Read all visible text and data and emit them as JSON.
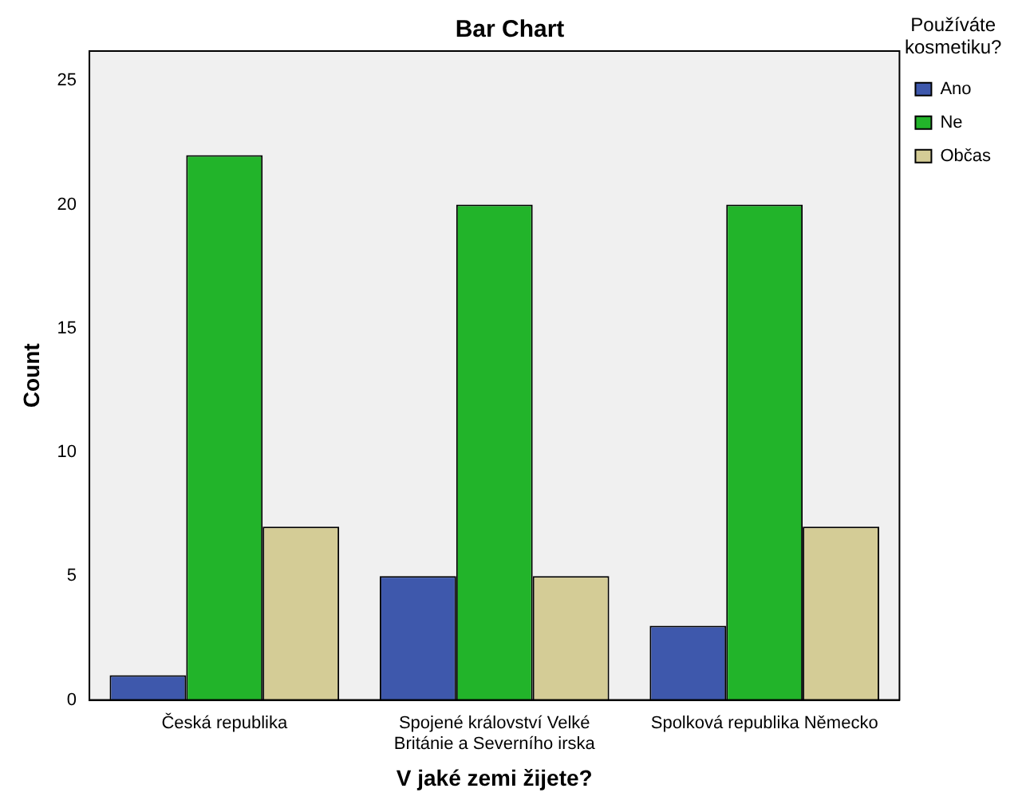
{
  "chart_data": {
    "type": "bar",
    "title": "Bar Chart",
    "xlabel": "V jaké zemi žijete?",
    "ylabel": "Count",
    "legend_title": "Používáte kosmetiku?",
    "categories": [
      "Česká republika",
      "Spojené království Velké Británie a Severního irska",
      "Spolková republika Německo"
    ],
    "series": [
      {
        "name": "Ano",
        "color": "#3e58ac",
        "values": [
          1,
          5,
          3
        ]
      },
      {
        "name": "Ne",
        "color": "#22b42a",
        "values": [
          22,
          20,
          20
        ]
      },
      {
        "name": "Občas",
        "color": "#d4cc96",
        "values": [
          7,
          5,
          7
        ]
      }
    ],
    "ylim": [
      0,
      26.2
    ],
    "yticks": [
      0,
      5,
      10,
      15,
      20,
      25
    ],
    "grid": false,
    "legend": "top right"
  }
}
